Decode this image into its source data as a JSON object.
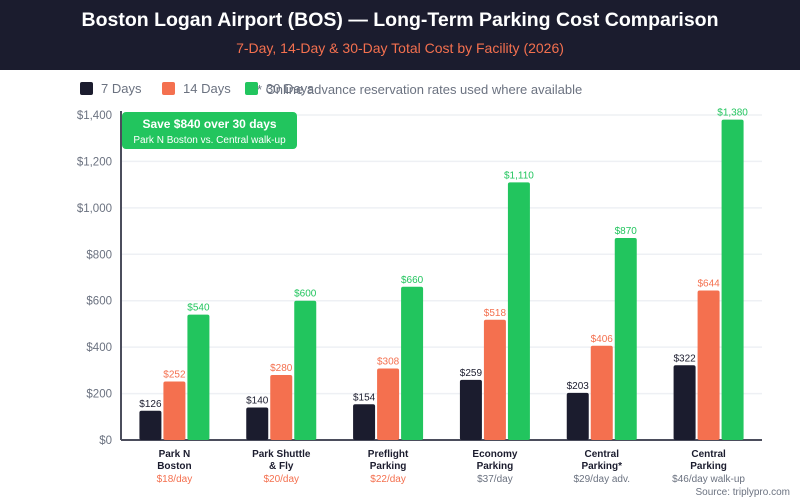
{
  "header": {
    "title": "Boston Logan Airport (BOS) — Long-Term Parking Cost Comparison",
    "subtitle": "7-Day, 14-Day & 30-Day Total Cost by Facility (2026)"
  },
  "legend": {
    "items": [
      {
        "label": "7 Days",
        "color": "#1b1c2e"
      },
      {
        "label": "14 Days",
        "color": "#f4704f"
      },
      {
        "label": "30 Days",
        "color": "#22c55e"
      }
    ],
    "note": "* Online advance reservation rates used where available"
  },
  "callout": {
    "headline": "Save $840 over 30 days",
    "detail": "Park N Boston vs. Central walk-up"
  },
  "source": "Source: triplypro.com",
  "chart_data": {
    "type": "bar",
    "title": "Boston Logan Airport (BOS) — Long-Term Parking Cost Comparison",
    "subtitle": "7-Day, 14-Day & 30-Day Total Cost by Facility (2026)",
    "xlabel": "",
    "ylabel": "",
    "ylim": [
      0,
      1400
    ],
    "yticks": [
      0,
      200,
      400,
      600,
      800,
      1000,
      1200,
      1400
    ],
    "ytick_labels": [
      "$0",
      "$200",
      "$400",
      "$600",
      "$800",
      "$1,000",
      "$1,200",
      "$1,400"
    ],
    "grid": true,
    "legend_position": "top-left",
    "categories": [
      {
        "name_lines": [
          "Park N",
          "Boston"
        ],
        "rate": "$18/day"
      },
      {
        "name_lines": [
          "Park Shuttle",
          "& Fly"
        ],
        "rate": "$20/day"
      },
      {
        "name_lines": [
          "Preflight",
          "Parking"
        ],
        "rate": "$22/day"
      },
      {
        "name_lines": [
          "Economy",
          "Parking"
        ],
        "rate": "$37/day"
      },
      {
        "name_lines": [
          "Central",
          "Parking*"
        ],
        "rate": "$29/day adv."
      },
      {
        "name_lines": [
          "Central",
          "Parking"
        ],
        "rate": "$46/day walk-up"
      }
    ],
    "series": [
      {
        "name": "7 Days",
        "color": "#1b1c2e",
        "label_color": "#1b1c2e",
        "values": [
          126,
          140,
          154,
          259,
          203,
          322
        ],
        "labels": [
          "$126",
          "$140",
          "$154",
          "$259",
          "$203",
          "$322"
        ]
      },
      {
        "name": "14 Days",
        "color": "#f4704f",
        "label_color": "#f4704f",
        "values": [
          252,
          280,
          308,
          518,
          406,
          644
        ],
        "labels": [
          "$252",
          "$280",
          "$308",
          "$518",
          "$406",
          "$644"
        ]
      },
      {
        "name": "30 Days",
        "color": "#22c55e",
        "label_color": "#22c55e",
        "values": [
          540,
          600,
          660,
          1110,
          870,
          1380
        ],
        "labels": [
          "$540",
          "$600",
          "$660",
          "$1,110",
          "$870",
          "$1,380"
        ]
      }
    ],
    "annotations": [
      {
        "text": "Save $840 over 30 days",
        "subtext": "Park N Boston vs. Central walk-up"
      }
    ]
  }
}
